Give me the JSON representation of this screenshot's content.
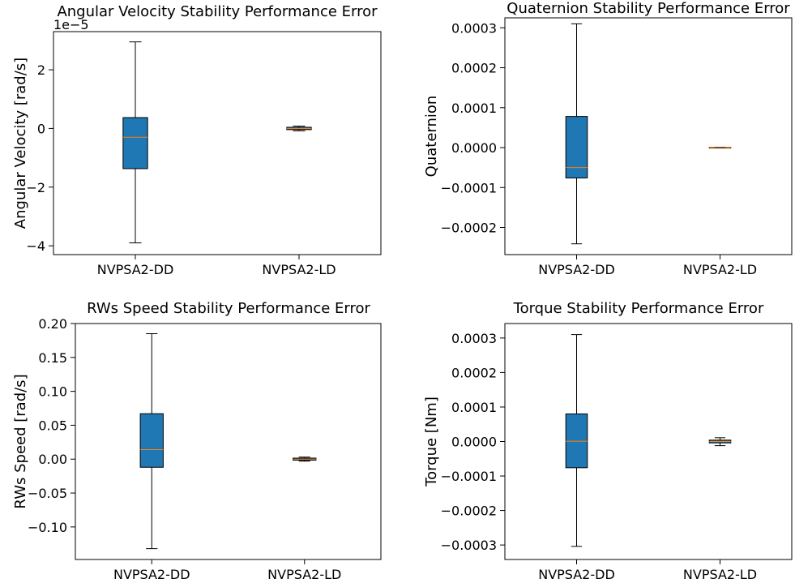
{
  "figure": {
    "layout": "2x2 grid of box plots",
    "colors": {
      "box_fill": "#1f77b4",
      "median": "#ff7f0e",
      "line": "#000000",
      "background": "#ffffff"
    }
  },
  "chart_data": [
    {
      "type": "box",
      "title": "Angular Velocity Stability Performance Error",
      "ylabel": "Angular Velocity [rad/s]",
      "offset_text": "1e−5",
      "categories": [
        "NVPSA2-DD",
        "NVPSA2-LD"
      ],
      "ylim": [
        -4.3,
        3.3
      ],
      "yticks": [
        2,
        0,
        -2,
        -4
      ],
      "ytick_labels": [
        "2",
        "0",
        "−2",
        "−4"
      ],
      "boxes": [
        {
          "whislo": -3.9,
          "q1": -1.37,
          "med": -0.3,
          "q3": 0.37,
          "whishi": 2.95
        },
        {
          "whislo": -0.08,
          "q1": -0.04,
          "med": 0.0,
          "q3": 0.04,
          "whishi": 0.08
        }
      ],
      "grid": false
    },
    {
      "type": "box",
      "title": "Quaternion Stability Performance Error",
      "ylabel": "Quaternion",
      "categories": [
        "NVPSA2-DD",
        "NVPSA2-LD"
      ],
      "ylim": [
        -0.000268,
        0.000325
      ],
      "yticks": [
        0.0003,
        0.0002,
        0.0001,
        0.0,
        -0.0001,
        -0.0002
      ],
      "ytick_labels": [
        "0.0003",
        "0.0002",
        "0.0001",
        "0.0000",
        "−0.0001",
        "−0.0002"
      ],
      "boxes": [
        {
          "whislo": -0.000241,
          "q1": -7.6e-05,
          "med": -5e-05,
          "q3": 7.8e-05,
          "whishi": 0.00031
        },
        {
          "whislo": -1e-06,
          "q1": -5e-07,
          "med": 0.0,
          "q3": 5e-07,
          "whishi": 1e-06
        }
      ],
      "grid": false
    },
    {
      "type": "box",
      "title": "RWs Speed Stability Performance Error",
      "ylabel": "RWs Speed [rad/s]",
      "categories": [
        "NVPSA2-DD",
        "NVPSA2-LD"
      ],
      "ylim": [
        -0.148,
        0.2
      ],
      "yticks": [
        0.2,
        0.15,
        0.1,
        0.05,
        0.0,
        -0.05,
        -0.1
      ],
      "ytick_labels": [
        "0.20",
        "0.15",
        "0.10",
        "0.05",
        "0.00",
        "−0.05",
        "−0.10"
      ],
      "boxes": [
        {
          "whislo": -0.132,
          "q1": -0.012,
          "med": 0.014,
          "q3": 0.067,
          "whishi": 0.185
        },
        {
          "whislo": -0.003,
          "q1": -0.0015,
          "med": 0.0,
          "q3": 0.0015,
          "whishi": 0.003
        }
      ],
      "grid": false
    },
    {
      "type": "box",
      "title": "Torque Stability Performance Error",
      "ylabel": "Torque [Nm]",
      "categories": [
        "NVPSA2-DD",
        "NVPSA2-LD"
      ],
      "ylim": [
        -0.000342,
        0.000342
      ],
      "yticks": [
        0.0003,
        0.0002,
        0.0001,
        0.0,
        -0.0001,
        -0.0002,
        -0.0003
      ],
      "ytick_labels": [
        "0.0003",
        "0.0002",
        "0.0001",
        "0.0000",
        "−0.0001",
        "−0.0002",
        "−0.0003"
      ],
      "boxes": [
        {
          "whislo": -0.000304,
          "q1": -7.6e-05,
          "med": 1e-06,
          "q3": 8e-05,
          "whishi": 0.00031
        },
        {
          "whislo": -1.2e-05,
          "q1": -4e-06,
          "med": 0.0,
          "q3": 4e-06,
          "whishi": 1.1e-05
        }
      ],
      "grid": false
    }
  ]
}
